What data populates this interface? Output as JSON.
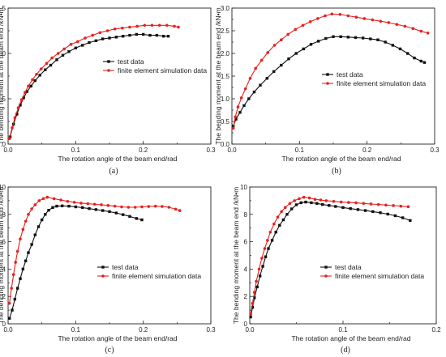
{
  "colors": {
    "test": "#111111",
    "fem": "#e8201e"
  },
  "chart_data": [
    {
      "type": "line",
      "panel_label": "(a)",
      "xlabel": "The rotation angle of the beam end/rad",
      "ylabel": "The bending moment at the beam end /kN•m",
      "xlim": [
        0,
        0.3
      ],
      "ylim": [
        0,
        1.5
      ],
      "x_ticks": [
        0,
        0.1,
        0.2,
        0.3
      ],
      "x_tick_labels": [
        "0.0",
        "0.1",
        "0.2",
        "0.3"
      ],
      "y_ticks": [
        0,
        0.5,
        1.0,
        1.5
      ],
      "y_tick_labels": [
        "0.0",
        "0.5",
        "1.0",
        "1.5"
      ],
      "legend_position": "center-right",
      "series": [
        {
          "name": "test data",
          "marker": "square",
          "color": "#111111",
          "x": [
            0.003,
            0.008,
            0.013,
            0.018,
            0.023,
            0.028,
            0.034,
            0.04,
            0.047,
            0.055,
            0.063,
            0.072,
            0.081,
            0.09,
            0.1,
            0.11,
            0.12,
            0.13,
            0.14,
            0.15,
            0.16,
            0.17,
            0.18,
            0.19,
            0.2,
            0.21,
            0.22,
            0.23,
            0.237
          ],
          "y": [
            0.08,
            0.22,
            0.33,
            0.43,
            0.51,
            0.58,
            0.64,
            0.7,
            0.76,
            0.82,
            0.87,
            0.93,
            0.98,
            1.02,
            1.06,
            1.09,
            1.12,
            1.14,
            1.16,
            1.17,
            1.18,
            1.19,
            1.2,
            1.21,
            1.21,
            1.2,
            1.2,
            1.19,
            1.19
          ]
        },
        {
          "name": "finite element simulation data",
          "marker": "circle",
          "color": "#e8201e",
          "x": [
            0.002,
            0.006,
            0.01,
            0.015,
            0.02,
            0.025,
            0.03,
            0.036,
            0.042,
            0.049,
            0.057,
            0.065,
            0.074,
            0.083,
            0.093,
            0.103,
            0.114,
            0.125,
            0.136,
            0.147,
            0.158,
            0.169,
            0.18,
            0.191,
            0.202,
            0.213,
            0.224,
            0.235,
            0.246,
            0.252
          ],
          "y": [
            0.06,
            0.18,
            0.29,
            0.4,
            0.49,
            0.57,
            0.64,
            0.71,
            0.77,
            0.83,
            0.89,
            0.95,
            1.0,
            1.05,
            1.1,
            1.13,
            1.17,
            1.2,
            1.23,
            1.25,
            1.27,
            1.28,
            1.29,
            1.3,
            1.31,
            1.31,
            1.31,
            1.31,
            1.3,
            1.29
          ]
        }
      ]
    },
    {
      "type": "line",
      "panel_label": "(b)",
      "xlabel": "The rotation angle of the beam end/rad",
      "ylabel": "The bending moment at the beam end /kN•m",
      "xlim": [
        0,
        0.3
      ],
      "ylim": [
        0,
        3.0
      ],
      "x_ticks": [
        0,
        0.1,
        0.2,
        0.3
      ],
      "x_tick_labels": [
        "0.0",
        "0.1",
        "0.2",
        "0.3"
      ],
      "y_ticks": [
        0,
        0.5,
        1.0,
        1.5,
        2.0,
        2.5,
        3.0
      ],
      "y_tick_labels": [
        "0.0",
        "0.5",
        "1.0",
        "1.5",
        "2.0",
        "2.5",
        "3.0"
      ],
      "legend_position": "center-right",
      "series": [
        {
          "name": "test data",
          "marker": "square",
          "color": "#111111",
          "x": [
            0.002,
            0.006,
            0.012,
            0.018,
            0.025,
            0.033,
            0.042,
            0.052,
            0.062,
            0.073,
            0.084,
            0.095,
            0.106,
            0.117,
            0.128,
            0.139,
            0.15,
            0.161,
            0.172,
            0.183,
            0.194,
            0.205,
            0.216,
            0.227,
            0.238,
            0.249,
            0.26,
            0.27,
            0.28,
            0.285
          ],
          "y": [
            0.4,
            0.55,
            0.7,
            0.85,
            1.0,
            1.15,
            1.3,
            1.45,
            1.6,
            1.74,
            1.88,
            2.0,
            2.1,
            2.2,
            2.27,
            2.33,
            2.37,
            2.37,
            2.36,
            2.35,
            2.34,
            2.32,
            2.3,
            2.25,
            2.18,
            2.1,
            2.0,
            1.9,
            1.83,
            1.8
          ]
        },
        {
          "name": "finite element simulation data",
          "marker": "circle",
          "color": "#e8201e",
          "x": [
            0.002,
            0.005,
            0.009,
            0.014,
            0.02,
            0.027,
            0.035,
            0.044,
            0.053,
            0.063,
            0.073,
            0.083,
            0.094,
            0.105,
            0.116,
            0.127,
            0.138,
            0.148,
            0.16,
            0.172,
            0.184,
            0.196,
            0.208,
            0.22,
            0.232,
            0.244,
            0.256,
            0.268,
            0.28,
            0.29
          ],
          "y": [
            0.35,
            0.6,
            0.82,
            1.02,
            1.22,
            1.45,
            1.67,
            1.85,
            2.02,
            2.18,
            2.3,
            2.42,
            2.53,
            2.62,
            2.7,
            2.77,
            2.83,
            2.87,
            2.86,
            2.83,
            2.8,
            2.77,
            2.74,
            2.71,
            2.68,
            2.64,
            2.6,
            2.55,
            2.49,
            2.45
          ]
        }
      ]
    },
    {
      "type": "line",
      "panel_label": "(c)",
      "xlabel": "The rotation angle of the beam end/rad",
      "ylabel": "The bending moment at the beam end /kN•m",
      "xlim": [
        0,
        0.3
      ],
      "ylim": [
        0,
        10
      ],
      "x_ticks": [
        0,
        0.1,
        0.2,
        0.3
      ],
      "x_tick_labels": [
        "0.0",
        "0.1",
        "0.2",
        "0.3"
      ],
      "y_ticks": [
        0,
        2,
        4,
        6,
        8,
        10
      ],
      "y_tick_labels": [
        "0",
        "2",
        "4",
        "6",
        "8",
        "10"
      ],
      "legend_position": "center-right",
      "series": [
        {
          "name": "test data",
          "marker": "square",
          "color": "#111111",
          "x": [
            0.002,
            0.006,
            0.01,
            0.014,
            0.018,
            0.022,
            0.026,
            0.03,
            0.035,
            0.04,
            0.045,
            0.05,
            0.055,
            0.06,
            0.066,
            0.072,
            0.08,
            0.09,
            0.1,
            0.11,
            0.12,
            0.13,
            0.14,
            0.15,
            0.16,
            0.17,
            0.18,
            0.19,
            0.198
          ],
          "y": [
            0.4,
            1.0,
            1.8,
            2.6,
            3.3,
            4.0,
            4.6,
            5.2,
            5.8,
            6.5,
            7.1,
            7.6,
            8.0,
            8.3,
            8.5,
            8.6,
            8.62,
            8.6,
            8.55,
            8.5,
            8.42,
            8.35,
            8.28,
            8.2,
            8.1,
            7.98,
            7.85,
            7.7,
            7.6
          ]
        },
        {
          "name": "finite element simulation data",
          "marker": "circle",
          "color": "#e8201e",
          "x": [
            0.002,
            0.005,
            0.008,
            0.011,
            0.014,
            0.018,
            0.022,
            0.026,
            0.03,
            0.035,
            0.04,
            0.046,
            0.052,
            0.058,
            0.068,
            0.078,
            0.088,
            0.098,
            0.108,
            0.118,
            0.128,
            0.138,
            0.148,
            0.158,
            0.168,
            0.178,
            0.188,
            0.198,
            0.208,
            0.218,
            0.228,
            0.238,
            0.248,
            0.254
          ],
          "y": [
            1.5,
            2.6,
            3.6,
            4.5,
            5.3,
            6.2,
            6.9,
            7.5,
            8.0,
            8.4,
            8.7,
            9.0,
            9.15,
            9.25,
            9.15,
            9.05,
            8.95,
            8.88,
            8.82,
            8.78,
            8.74,
            8.7,
            8.65,
            8.6,
            8.55,
            8.52,
            8.52,
            8.55,
            8.58,
            8.6,
            8.58,
            8.52,
            8.38,
            8.28
          ]
        }
      ]
    },
    {
      "type": "line",
      "panel_label": "(d)",
      "xlabel": "The rotation angle of the beam end/rad",
      "ylabel": "The bending moment at the beam end /kN•m",
      "xlim": [
        0,
        0.2
      ],
      "ylim": [
        0,
        10
      ],
      "x_ticks": [
        0,
        0.1,
        0.2
      ],
      "x_tick_labels": [
        "0.0",
        "0.1",
        "0.2"
      ],
      "y_ticks": [
        0,
        2,
        4,
        6,
        8,
        10
      ],
      "y_tick_labels": [
        "0",
        "2",
        "4",
        "6",
        "8",
        "10"
      ],
      "legend_position": "center-right",
      "series": [
        {
          "name": "test data",
          "marker": "square",
          "color": "#111111",
          "x": [
            0.001,
            0.003,
            0.005,
            0.008,
            0.011,
            0.014,
            0.017,
            0.02,
            0.024,
            0.028,
            0.032,
            0.036,
            0.04,
            0.045,
            0.05,
            0.055,
            0.06,
            0.066,
            0.072,
            0.078,
            0.085,
            0.092,
            0.1,
            0.108,
            0.116,
            0.124,
            0.132,
            0.14,
            0.148,
            0.156,
            0.164,
            0.172
          ],
          "y": [
            0.5,
            1.2,
            1.9,
            2.7,
            3.5,
            4.2,
            4.9,
            5.5,
            6.1,
            6.7,
            7.2,
            7.6,
            8.0,
            8.4,
            8.7,
            8.85,
            8.9,
            8.85,
            8.8,
            8.72,
            8.65,
            8.58,
            8.5,
            8.42,
            8.35,
            8.28,
            8.2,
            8.12,
            8.02,
            7.9,
            7.75,
            7.55
          ]
        },
        {
          "name": "finite element simulation data",
          "marker": "circle",
          "color": "#e8201e",
          "x": [
            0.001,
            0.003,
            0.005,
            0.007,
            0.01,
            0.013,
            0.016,
            0.019,
            0.022,
            0.026,
            0.03,
            0.034,
            0.038,
            0.043,
            0.048,
            0.053,
            0.058,
            0.064,
            0.07,
            0.076,
            0.082,
            0.09,
            0.098,
            0.106,
            0.114,
            0.122,
            0.13,
            0.138,
            0.146,
            0.154,
            0.162,
            0.17
          ],
          "y": [
            0.7,
            1.5,
            2.3,
            3.1,
            4.0,
            4.8,
            5.5,
            6.1,
            6.7,
            7.3,
            7.8,
            8.2,
            8.5,
            8.8,
            9.0,
            9.15,
            9.25,
            9.2,
            9.1,
            9.05,
            9.0,
            8.95,
            8.9,
            8.87,
            8.84,
            8.8,
            8.76,
            8.72,
            8.68,
            8.64,
            8.6,
            8.56
          ]
        }
      ]
    }
  ]
}
